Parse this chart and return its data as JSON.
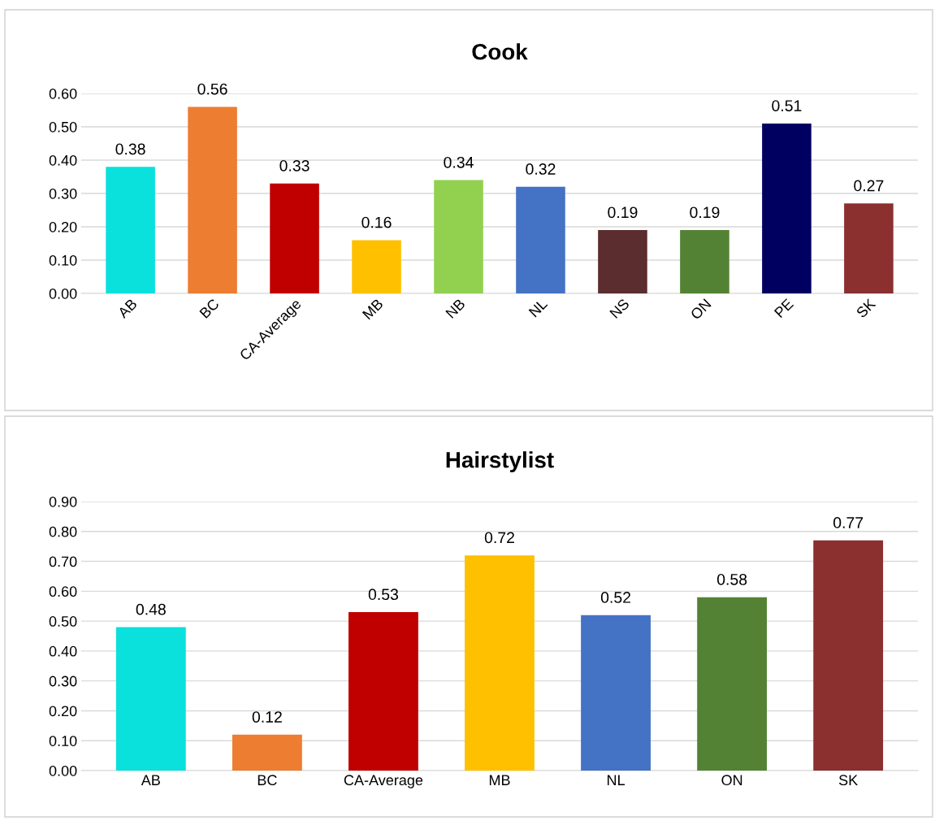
{
  "chart_data": [
    {
      "type": "bar",
      "title": "Cook",
      "categories": [
        "AB",
        "BC",
        "CA-Average",
        "MB",
        "NB",
        "NL",
        "NS",
        "ON",
        "PE",
        "SK"
      ],
      "values": [
        0.38,
        0.56,
        0.33,
        0.16,
        0.34,
        0.32,
        0.19,
        0.19,
        0.51,
        0.27
      ],
      "colors": [
        "#0ae0dc",
        "#ed7d31",
        "#c00000",
        "#ffc000",
        "#92d050",
        "#4472c4",
        "#5c2d2e",
        "#548235",
        "#000060",
        "#8b2f2f"
      ],
      "ylim": [
        0,
        0.6
      ],
      "yticks": [
        {
          "value": 0,
          "label": "0.00"
        },
        {
          "value": 0.1,
          "label": "0.10"
        },
        {
          "value": 0.2,
          "label": "0.20"
        },
        {
          "value": 0.3,
          "label": "0.30"
        },
        {
          "value": 0.4,
          "label": "0.40"
        },
        {
          "value": 0.5,
          "label": "0.50"
        },
        {
          "value": 0.6,
          "label": "0.60"
        }
      ],
      "grid": "y",
      "data_labels": true
    },
    {
      "type": "bar",
      "title": "Hairstylist",
      "categories": [
        "AB",
        "BC",
        "CA-Average",
        "MB",
        "NL",
        "ON",
        "SK"
      ],
      "values": [
        0.48,
        0.12,
        0.53,
        0.72,
        0.52,
        0.58,
        0.77
      ],
      "colors": [
        "#0ae0dc",
        "#ed7d31",
        "#c00000",
        "#ffc000",
        "#4472c4",
        "#548235",
        "#8b2f2f"
      ],
      "ylim": [
        0,
        0.9
      ],
      "yticks": [
        {
          "value": 0,
          "label": "0.00"
        },
        {
          "value": 0.1,
          "label": "0.10"
        },
        {
          "value": 0.2,
          "label": "0.20"
        },
        {
          "value": 0.3,
          "label": "0.30"
        },
        {
          "value": 0.4,
          "label": "0.40"
        },
        {
          "value": 0.5,
          "label": "0.50"
        },
        {
          "value": 0.6,
          "label": "0.60"
        },
        {
          "value": 0.7,
          "label": "0.70"
        },
        {
          "value": 0.8,
          "label": "0.80"
        },
        {
          "value": 0.9,
          "label": "0.90"
        }
      ],
      "grid": "y",
      "data_labels": true
    }
  ]
}
